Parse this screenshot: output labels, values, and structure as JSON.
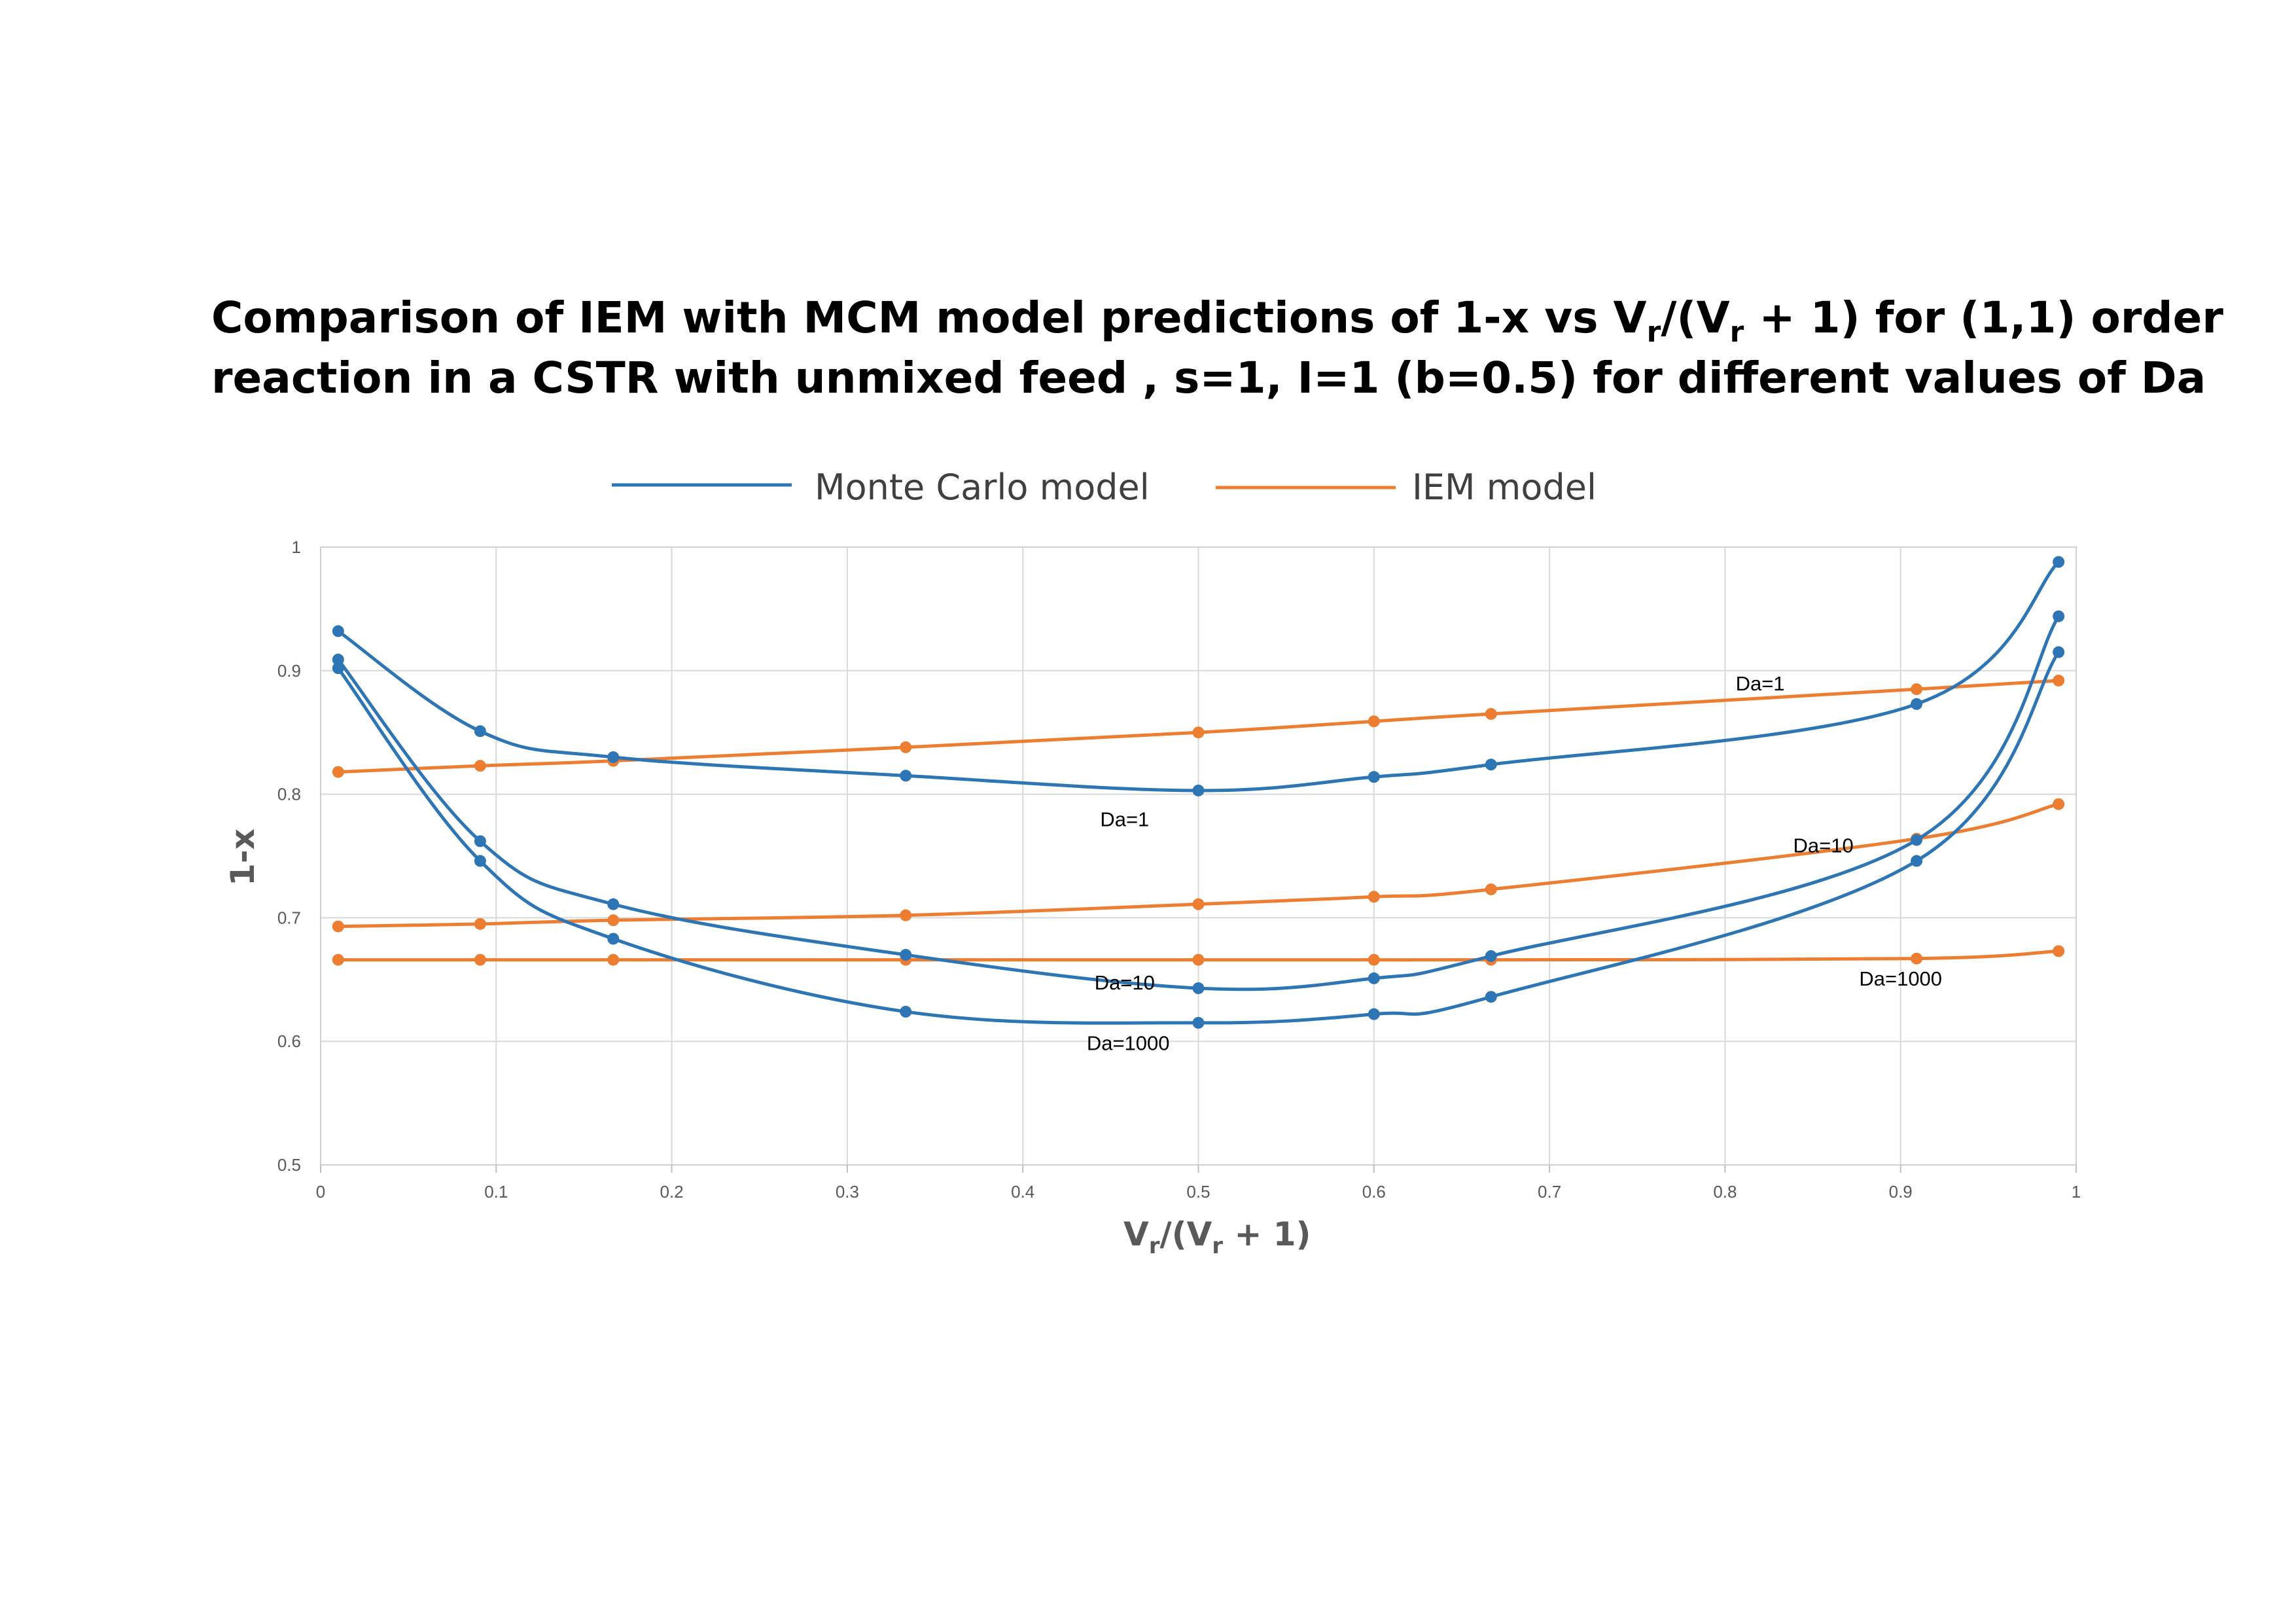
{
  "chart_data": {
    "type": "line",
    "title_line1_part1": "Comparison of IEM with MCM model predictions of 1-x vs V",
    "title_line1_sub1": "r",
    "title_line1_part2": "/(V",
    "title_line1_sub2": "r",
    "title_line1_part3": " + 1) for (1,1) order",
    "title_line2": "reaction in a CSTR with unmixed feed , s=1, I=1 (b=0.5) for different values of Da",
    "xlabel_part1": "V",
    "xlabel_sub1": "r",
    "xlabel_part2": "/(V",
    "xlabel_sub2": "r",
    "xlabel_part3": " + 1)",
    "ylabel": "1-x",
    "xlim": [
      0,
      1
    ],
    "ylim": [
      0.5,
      1
    ],
    "x_ticks": [
      0,
      0.1,
      0.2,
      0.3,
      0.4,
      0.5,
      0.6,
      0.7,
      0.8,
      0.9,
      1
    ],
    "y_ticks": [
      0.5,
      0.6,
      0.7,
      0.8,
      0.9,
      1
    ],
    "x_tick_labels": [
      "0",
      "0.1",
      "0.2",
      "0.3",
      "0.4",
      "0.5",
      "0.6",
      "0.7",
      "0.8",
      "0.9",
      "1"
    ],
    "y_tick_labels": [
      "0.5",
      "0.6",
      "0.7",
      "0.8",
      "0.9",
      "1"
    ],
    "grid": true,
    "legend": [
      {
        "name": "Monte Carlo model",
        "color": "#2E75B6"
      },
      {
        "name": "IEM model",
        "color": "#ED7D31"
      }
    ],
    "legend_position": "top",
    "series": [
      {
        "name": "Monte Carlo model",
        "group": "Da=1",
        "color": "#2E75B6",
        "x": [
          0.01,
          0.0909,
          0.1667,
          0.3333,
          0.5,
          0.6,
          0.6667,
          0.9091,
          0.99
        ],
        "y": [
          0.932,
          0.851,
          0.83,
          0.815,
          0.803,
          0.814,
          0.824,
          0.873,
          0.988
        ]
      },
      {
        "name": "Monte Carlo model",
        "group": "Da=10",
        "color": "#2E75B6",
        "x": [
          0.01,
          0.0909,
          0.1667,
          0.3333,
          0.5,
          0.6,
          0.6667,
          0.9091,
          0.99
        ],
        "y": [
          0.909,
          0.762,
          0.711,
          0.67,
          0.643,
          0.651,
          0.669,
          0.763,
          0.944
        ]
      },
      {
        "name": "Monte Carlo model",
        "group": "Da=1000",
        "color": "#2E75B6",
        "x": [
          0.01,
          0.0909,
          0.1667,
          0.3333,
          0.5,
          0.6,
          0.6667,
          0.9091,
          0.99
        ],
        "y": [
          0.902,
          0.746,
          0.683,
          0.624,
          0.615,
          0.622,
          0.636,
          0.746,
          0.915
        ]
      },
      {
        "name": "IEM model",
        "group": "Da=1",
        "color": "#ED7D31",
        "x": [
          0.01,
          0.0909,
          0.1667,
          0.3333,
          0.5,
          0.6,
          0.6667,
          0.9091,
          0.99
        ],
        "y": [
          0.818,
          0.823,
          0.827,
          0.838,
          0.85,
          0.859,
          0.865,
          0.885,
          0.892
        ]
      },
      {
        "name": "IEM model",
        "group": "Da=10",
        "color": "#ED7D31",
        "x": [
          0.01,
          0.0909,
          0.1667,
          0.3333,
          0.5,
          0.6,
          0.6667,
          0.9091,
          0.99
        ],
        "y": [
          0.693,
          0.695,
          0.698,
          0.702,
          0.711,
          0.717,
          0.723,
          0.764,
          0.792
        ]
      },
      {
        "name": "IEM model",
        "group": "Da=1000",
        "color": "#ED7D31",
        "x": [
          0.01,
          0.0909,
          0.1667,
          0.3333,
          0.5,
          0.6,
          0.6667,
          0.9091,
          0.99
        ],
        "y": [
          0.666,
          0.666,
          0.666,
          0.666,
          0.666,
          0.666,
          0.666,
          0.667,
          0.673
        ]
      }
    ],
    "annotations": [
      {
        "text": "Da=1",
        "x": 0.82,
        "y": 0.884
      },
      {
        "text": "Da=1",
        "x": 0.458,
        "y": 0.774
      },
      {
        "text": "Da=10",
        "x": 0.856,
        "y": 0.753
      },
      {
        "text": "Da=10",
        "x": 0.458,
        "y": 0.642
      },
      {
        "text": "Da=1000",
        "x": 0.9,
        "y": 0.645
      },
      {
        "text": "Da=1000",
        "x": 0.46,
        "y": 0.593
      }
    ]
  }
}
